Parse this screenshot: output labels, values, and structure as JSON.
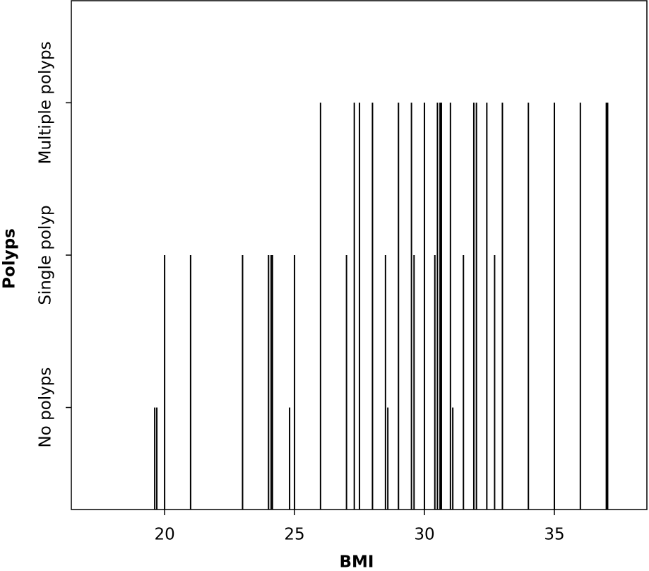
{
  "chart_data": {
    "type": "spike",
    "x_label": "BMI",
    "y_label": "Polyps",
    "x": [
      19.62,
      19.7,
      24.81,
      28.59,
      31.09,
      20.0,
      21.0,
      23.0,
      24.0,
      24.1,
      24.15,
      25.0,
      27.0,
      28.5,
      29.6,
      30.4,
      31.5,
      32.7,
      26.0,
      27.3,
      27.5,
      28.0,
      29.0,
      29.5,
      30.0,
      30.5,
      30.6,
      30.65,
      31.0,
      31.9,
      32.0,
      32.4,
      33.0,
      34.0,
      35.0,
      36.0,
      37.0,
      37.05
    ],
    "values": [
      1,
      1,
      1,
      1,
      1,
      2,
      2,
      2,
      2,
      2,
      2,
      2,
      2,
      2,
      2,
      2,
      2,
      2,
      3,
      3,
      3,
      3,
      3,
      3,
      3,
      3,
      3,
      3,
      3,
      3,
      3,
      3,
      3,
      3,
      3,
      3,
      3,
      3
    ],
    "color": "#000000",
    "xlim": [
      16.41,
      38.56
    ],
    "xticks": [
      20,
      25,
      30,
      35
    ],
    "ylim": [
      0.33,
      3.67
    ],
    "yticks": [
      {
        "value": 1,
        "label": "No polyps"
      },
      {
        "value": 2,
        "label": "Single polyp"
      },
      {
        "value": 3,
        "label": "Multiple polyps"
      }
    ]
  }
}
